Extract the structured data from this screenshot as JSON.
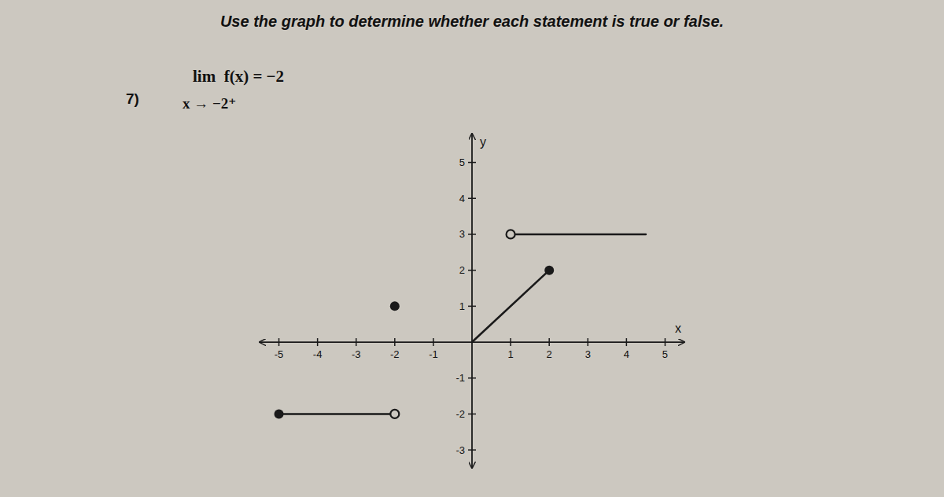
{
  "chart_data": {
    "type": "line",
    "title": "Use the graph to determine whether each statement is true or false.",
    "annotations": [
      "7)",
      "lim  f(x) = −2",
      "x → −2⁺"
    ],
    "xlabel": "x",
    "ylabel": "y",
    "xlim": [
      -5.5,
      5.5
    ],
    "ylim": [
      -3.5,
      5.8
    ],
    "xticks": [
      -5,
      -4,
      -3,
      -2,
      -1,
      1,
      2,
      3,
      4,
      5
    ],
    "yticks": [
      -3,
      -2,
      -1,
      1,
      2,
      3,
      4,
      5
    ],
    "grid": false,
    "color": "#1a1a1a",
    "series": [
      {
        "type": "line",
        "x": [
          0,
          2
        ],
        "values": [
          0,
          2
        ]
      },
      {
        "type": "line",
        "x": [
          1,
          4.5
        ],
        "values": [
          3,
          3
        ]
      },
      {
        "type": "line",
        "x": [
          -5,
          -2
        ],
        "values": [
          -2,
          -2
        ]
      },
      {
        "type": "scatter",
        "marker": "filled-circle",
        "x": [
          2,
          -5,
          -2
        ],
        "values": [
          2,
          -2,
          1
        ]
      },
      {
        "type": "scatter",
        "marker": "open-circle",
        "x": [
          1,
          -2
        ],
        "values": [
          3,
          -2
        ]
      }
    ]
  }
}
